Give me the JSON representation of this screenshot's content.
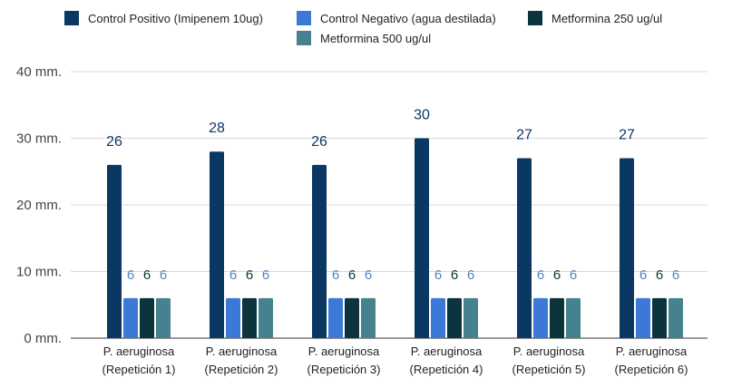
{
  "chart_data": {
    "type": "bar",
    "categories": [
      [
        "P. aeruginosa",
        "(Repetición 1)"
      ],
      [
        "P. aeruginosa",
        "(Repetición 2)"
      ],
      [
        "P. aeruginosa",
        "(Repetición 3)"
      ],
      [
        "P. aeruginosa",
        "(Repetición 4)"
      ],
      [
        "P. aeruginosa",
        "(Repetición 5)"
      ],
      [
        "P. aeruginosa",
        "(Repetición 6)"
      ]
    ],
    "series": [
      {
        "name": "Control Positivo (Imipenem 10ug)",
        "color": "#0b3763",
        "label_color": "#0b3763",
        "values": [
          26,
          28,
          26,
          30,
          27,
          27
        ]
      },
      {
        "name": "Control Negativo (agua destilada)",
        "color": "#3c78d8",
        "label_color": "#4a86c5",
        "values": [
          6,
          6,
          6,
          6,
          6,
          6
        ]
      },
      {
        "name": "Metformina 250 ug/ul",
        "color": "#0c343d",
        "label_color": "#0c343d",
        "values": [
          6,
          6,
          6,
          6,
          6,
          6
        ]
      },
      {
        "name": "Metformina 500 ug/ul",
        "color": "#45818e",
        "label_color": "#4a86c5",
        "values": [
          6,
          6,
          6,
          6,
          6,
          6
        ]
      }
    ],
    "y_ticks": [
      "0 mm.",
      "10 mm.",
      "20 mm.",
      "30 mm.",
      "40 mm."
    ],
    "y_tick_values": [
      0,
      10,
      20,
      30,
      40
    ],
    "ylim": [
      0,
      40
    ],
    "grid": true,
    "legend_position": "top",
    "gridline_color": "#d9d9d9"
  }
}
